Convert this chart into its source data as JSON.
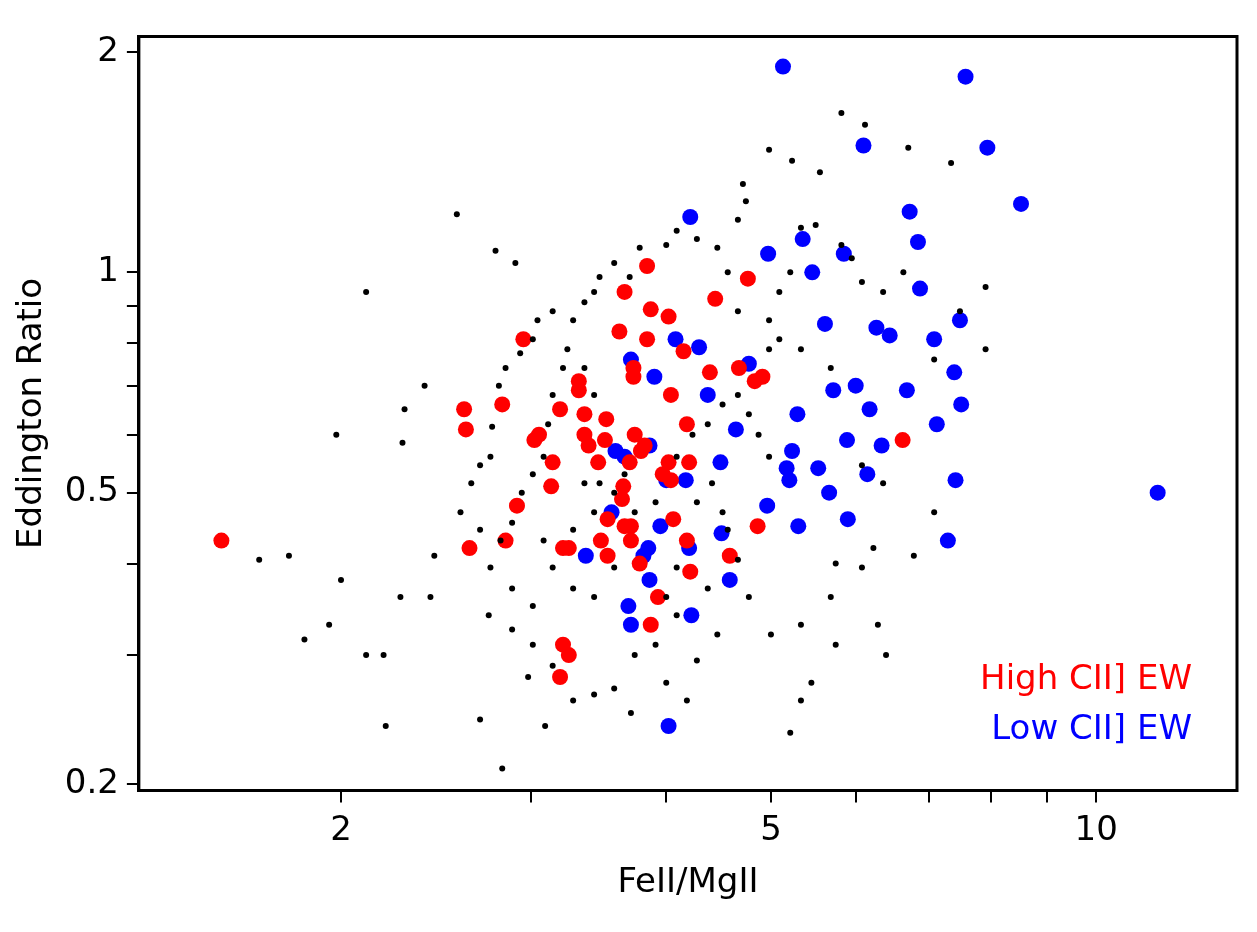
{
  "chart_data": {
    "type": "scatter",
    "xlabel": "FeII/MgII",
    "ylabel": "Eddington Ratio",
    "log": "xy",
    "grid": false,
    "legend": "bottom right",
    "marker": "circle",
    "xlim": [
      1.3,
      13.5
    ],
    "ylim": [
      0.196,
      2.1
    ],
    "xticks": [
      2,
      5,
      10,
      {
        "value": 3,
        "label": null
      },
      {
        "value": 4,
        "label": null
      },
      {
        "value": 6,
        "label": null
      },
      {
        "value": 7,
        "label": null
      },
      {
        "value": 8,
        "label": null
      },
      {
        "value": 9,
        "label": null
      }
    ],
    "yticks": [
      0.2,
      0.5,
      1,
      2,
      {
        "value": 0.3,
        "label": null
      },
      {
        "value": 0.4,
        "label": null
      },
      {
        "value": 0.6,
        "label": null
      },
      {
        "value": 0.7,
        "label": null
      },
      {
        "value": 0.8,
        "label": null
      },
      {
        "value": 0.9,
        "label": null
      }
    ],
    "series": [
      {
        "color": "#000000",
        "x": [
          2.56,
          2.78,
          2.9,
          2.11,
          2.29,
          2.39,
          2.28,
          2.44,
          2.42,
          2.27,
          2.11,
          1.98,
          1.95,
          1.85,
          1.79,
          1.68,
          2.0,
          2.19,
          2.2,
          2.82,
          2.69,
          3.09,
          2.98,
          2.74,
          2.58,
          2.64,
          2.69,
          2.75,
          2.76,
          2.8,
          2.84,
          2.93,
          3.01,
          3.04,
          3.14,
          3.24,
          3.28,
          3.36,
          3.43,
          3.47,
          3.58,
          3.7,
          3.78,
          4.0,
          4.09,
          4.27,
          4.46,
          4.66,
          4.71,
          4.74,
          4.56,
          4.66,
          4.98,
          5.09,
          5.21,
          5.33,
          5.5,
          5.81,
          5.94,
          6.07,
          6.35,
          6.63,
          6.7,
          7.34,
          5.81,
          6.11,
          4.98,
          5.23,
          5.55,
          4.98,
          5.09,
          5.33,
          5.68,
          7.08,
          7.9,
          7.9,
          7.48,
          6.07,
          6.35,
          7.08,
          6.22,
          6.07,
          5.74,
          5.33,
          5.0,
          4.66,
          4.77,
          4.46,
          4.27,
          4.18,
          3.71,
          4.0,
          3.58,
          3.43,
          3.28,
          3.14,
          3.01,
          2.88,
          3.01,
          2.88,
          2.75,
          2.81,
          2.69,
          2.88,
          2.94,
          3.01,
          3.08,
          3.11,
          3.14,
          3.21,
          3.36,
          3.43,
          3.47,
          3.58,
          3.66,
          3.74,
          3.91,
          4.09,
          4.23,
          4.37,
          4.51,
          4.66,
          4.77,
          4.87,
          4.98,
          4.27,
          4.41,
          4.51,
          4.56,
          4.09,
          4.0,
          3.91,
          3.74,
          3.58,
          3.43,
          3.28,
          3.14,
          3.08,
          3.28,
          3.36,
          3.43,
          4.09,
          4.37,
          5.33,
          5.45,
          5.74,
          6.28,
          6.39,
          5.21,
          6.78,
          5.68
        ],
        "values": [
          1.2,
          1.07,
          1.03,
          0.94,
          0.65,
          0.7,
          0.585,
          0.41,
          0.36,
          0.36,
          0.3,
          0.6,
          0.33,
          0.315,
          0.41,
          0.405,
          0.38,
          0.3,
          0.24,
          0.21,
          0.245,
          0.24,
          0.28,
          0.34,
          0.47,
          0.515,
          0.545,
          0.56,
          0.615,
          0.7,
          0.74,
          0.775,
          0.81,
          0.86,
          0.885,
          0.785,
          0.86,
          0.91,
          0.94,
          0.985,
          1.03,
          0.985,
          1.08,
          1.09,
          1.14,
          1.11,
          1.08,
          1.18,
          1.32,
          1.25,
          1.0,
          0.885,
          0.86,
          0.94,
          1.0,
          1.15,
          1.16,
          1.09,
          1.045,
          0.97,
          0.94,
          1.0,
          1.48,
          1.41,
          1.65,
          1.59,
          1.47,
          1.42,
          1.37,
          0.785,
          0.81,
          0.785,
          0.74,
          0.76,
          0.785,
          0.955,
          0.885,
          0.545,
          0.515,
          0.47,
          0.42,
          0.395,
          0.4,
          0.33,
          0.32,
          0.405,
          0.36,
          0.32,
          0.295,
          0.26,
          0.25,
          0.275,
          0.27,
          0.265,
          0.26,
          0.29,
          0.31,
          0.325,
          0.35,
          0.37,
          0.395,
          0.43,
          0.445,
          0.455,
          0.5,
          0.53,
          0.56,
          0.62,
          0.68,
          0.74,
          0.74,
          0.68,
          0.515,
          0.5,
          0.53,
          0.47,
          0.485,
          0.56,
          0.6,
          0.62,
          0.66,
          0.68,
          0.64,
          0.6,
          0.56,
          0.485,
          0.515,
          0.47,
          0.445,
          0.395,
          0.36,
          0.31,
          0.3,
          0.395,
          0.36,
          0.37,
          0.395,
          0.43,
          0.445,
          0.515,
          0.47,
          0.34,
          0.37,
          0.26,
          0.275,
          0.31,
          0.33,
          0.3,
          0.235,
          0.41,
          0.36
        ]
      },
      {
        "name": "High CII] EW",
        "color": "#ff0000",
        "x": [
          1.55,
          2.6,
          2.61,
          2.63,
          2.82,
          2.91,
          2.84,
          2.95,
          3.02,
          3.05,
          3.14,
          3.13,
          3.19,
          3.32,
          3.32,
          3.36,
          3.36,
          3.21,
          3.25,
          3.19,
          3.21,
          3.25,
          3.39,
          3.46,
          3.51,
          3.52,
          3.48,
          3.53,
          3.53,
          3.62,
          3.66,
          3.64,
          3.65,
          3.66,
          3.71,
          3.71,
          3.73,
          3.73,
          3.74,
          3.7,
          3.78,
          3.82,
          3.84,
          3.84,
          3.87,
          3.87,
          3.93,
          4.02,
          4.04,
          4.02,
          4.04,
          4.06,
          4.15,
          4.18,
          4.2,
          4.18,
          4.21,
          4.39,
          4.44,
          4.58,
          4.67,
          4.76,
          4.83,
          4.91,
          4.86,
          6.62,
          3.79,
          3.97
        ],
        "values": [
          0.43,
          0.65,
          0.61,
          0.42,
          0.66,
          0.48,
          0.43,
          0.81,
          0.59,
          0.6,
          0.55,
          0.51,
          0.65,
          0.71,
          0.69,
          0.6,
          0.64,
          0.31,
          0.3,
          0.28,
          0.42,
          0.42,
          0.58,
          0.55,
          0.59,
          0.63,
          0.43,
          0.41,
          0.46,
          0.83,
          0.94,
          0.49,
          0.51,
          0.45,
          0.45,
          0.43,
          0.72,
          0.74,
          0.6,
          0.55,
          0.4,
          0.58,
          1.02,
          0.81,
          0.89,
          0.33,
          0.36,
          0.87,
          0.68,
          0.55,
          0.52,
          0.46,
          0.78,
          0.62,
          0.55,
          0.43,
          0.39,
          0.73,
          0.92,
          0.41,
          0.74,
          0.98,
          0.71,
          0.72,
          0.45,
          0.59,
          0.57,
          0.53
        ]
      },
      {
        "name": "Low CII] EW",
        "color": "#0000ff",
        "x": [
          5.13,
          7.57,
          7.93,
          6.09,
          8.52,
          4.21,
          6.72,
          6.84,
          4.97,
          5.35,
          5.84,
          5.46,
          6.87,
          5.61,
          6.26,
          6.44,
          7.08,
          7.48,
          4.08,
          4.29,
          3.71,
          3.9,
          4.77,
          7.39,
          4.37,
          5.71,
          5.99,
          6.68,
          7.5,
          6.17,
          5.29,
          4.64,
          5.88,
          5.23,
          6.33,
          3.86,
          3.59,
          3.66,
          4.49,
          6.14,
          5.17,
          5.2,
          5.53,
          7.12,
          4.17,
          4.0,
          5.66,
          7.41,
          11.4,
          4.96,
          3.56,
          3.95,
          5.3,
          5.89,
          4.5,
          7.29,
          3.85,
          3.81,
          4.2,
          3.37,
          4.58,
          3.86,
          3.69,
          3.71,
          4.22,
          4.02
        ],
        "values": [
          1.91,
          1.85,
          1.48,
          1.49,
          1.24,
          1.19,
          1.21,
          1.1,
          1.06,
          1.11,
          1.06,
          1.0,
          0.95,
          0.85,
          0.84,
          0.82,
          0.81,
          0.86,
          0.81,
          0.79,
          0.76,
          0.72,
          0.75,
          0.73,
          0.68,
          0.69,
          0.7,
          0.69,
          0.66,
          0.65,
          0.64,
          0.61,
          0.59,
          0.57,
          0.58,
          0.58,
          0.57,
          0.56,
          0.55,
          0.53,
          0.54,
          0.52,
          0.54,
          0.62,
          0.52,
          0.52,
          0.5,
          0.52,
          0.5,
          0.48,
          0.47,
          0.45,
          0.45,
          0.46,
          0.44,
          0.43,
          0.42,
          0.41,
          0.42,
          0.41,
          0.38,
          0.38,
          0.35,
          0.33,
          0.34,
          0.24
        ]
      }
    ]
  }
}
